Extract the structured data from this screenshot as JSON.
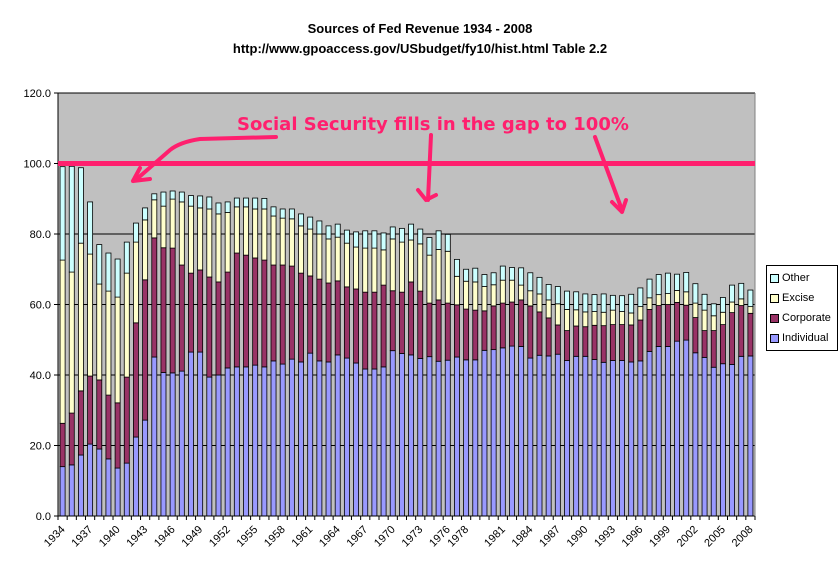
{
  "chart_data": {
    "type": "bar",
    "stacked": true,
    "title": "Sources of Fed Revenue 1934 - 2008",
    "subtitle": "http://www.gpoaccess.gov/USbudget/fy10/hist.html Table 2.2",
    "xlabel": "",
    "ylabel": "",
    "ylim": [
      0,
      120
    ],
    "yticks": [
      "0.0",
      "20.0",
      "40.0",
      "60.0",
      "80.0",
      "100.0",
      "120.0"
    ],
    "ytick_values": [
      0,
      20,
      40,
      60,
      80,
      100,
      120
    ],
    "grid": true,
    "legend_position": "right",
    "xtick_labels": [
      "1934",
      "1937",
      "1940",
      "1943",
      "1946",
      "1949",
      "1952",
      "1955",
      "1958",
      "1961",
      "1964",
      "1967",
      "1970",
      "1973",
      "1976",
      "1978",
      "1981",
      "1984",
      "1987",
      "1990",
      "1993",
      "1996",
      "1999",
      "2002",
      "2005",
      "2008"
    ],
    "categories": [
      "1934",
      "1935",
      "1936",
      "1937",
      "1938",
      "1939",
      "1940",
      "1941",
      "1942",
      "1943",
      "1944",
      "1945",
      "1946",
      "1947",
      "1948",
      "1949",
      "1950",
      "1951",
      "1952",
      "1953",
      "1954",
      "1955",
      "1956",
      "1957",
      "1958",
      "1959",
      "1960",
      "1961",
      "1962",
      "1963",
      "1964",
      "1965",
      "1966",
      "1967",
      "1968",
      "1969",
      "1970",
      "1971",
      "1972",
      "1973",
      "1974",
      "1975",
      "1976",
      "TQ",
      "1977",
      "1978",
      "1979",
      "1980",
      "1981",
      "1982",
      "1983",
      "1984",
      "1985",
      "1986",
      "1987",
      "1988",
      "1989",
      "1990",
      "1991",
      "1992",
      "1993",
      "1994",
      "1995",
      "1996",
      "1997",
      "1998",
      "1999",
      "2000",
      "2001",
      "2002",
      "2003",
      "2004",
      "2005",
      "2006",
      "2007",
      "2008"
    ],
    "series": [
      {
        "name": "Individual",
        "color": "#9999ff",
        "values": [
          14.0,
          14.5,
          17.3,
          20.4,
          19.0,
          16.2,
          13.6,
          15.0,
          22.4,
          27.2,
          45.1,
          40.7,
          40.6,
          41.1,
          46.5,
          46.5,
          39.4,
          40.0,
          42.0,
          42.3,
          42.3,
          42.8,
          42.3,
          44.0,
          43.1,
          44.5,
          43.7,
          46.2,
          44.0,
          43.7,
          45.7,
          44.8,
          43.4,
          41.7,
          41.7,
          42.3,
          46.9,
          46.1,
          45.7,
          44.7,
          45.2,
          43.9,
          44.2,
          45.1,
          44.3,
          44.3,
          47.0,
          47.2,
          47.7,
          48.2,
          48.1,
          44.8,
          45.6,
          45.4,
          45.9,
          44.1,
          45.3,
          45.3,
          44.4,
          43.6,
          44.1,
          44.1,
          43.7,
          44.0,
          46.7,
          48.1,
          48.1,
          49.6,
          49.9,
          46.3,
          45.0,
          42.2,
          43.2,
          43.0,
          45.3,
          45.4
        ]
      },
      {
        "name": "Corporate",
        "color": "#993366",
        "values": [
          12.3,
          14.7,
          18.2,
          19.3,
          19.6,
          18.1,
          18.5,
          24.4,
          32.4,
          39.8,
          33.8,
          35.4,
          35.4,
          30.1,
          22.4,
          23.3,
          28.4,
          26.4,
          27.2,
          32.3,
          31.7,
          30.4,
          30.3,
          27.2,
          28.1,
          26.4,
          25.2,
          21.9,
          23.2,
          22.4,
          21.0,
          20.2,
          21.0,
          21.8,
          21.8,
          23.2,
          17.0,
          17.4,
          20.7,
          19.1,
          15.2,
          17.4,
          16.2,
          14.8,
          14.4,
          14.1,
          11.2,
          12.4,
          12.7,
          12.5,
          13.2,
          14.8,
          12.3,
          10.8,
          8.3,
          8.5,
          8.6,
          8.4,
          9.7,
          10.4,
          10.2,
          10.2,
          10.5,
          11.6,
          11.9,
          11.6,
          11.9,
          11.0,
          9.9,
          10.0,
          7.6,
          10.4,
          11.1,
          14.7,
          14.4,
          12.1
        ]
      },
      {
        "name": "Excise",
        "color": "#ffffcc",
        "values": [
          46.3,
          40.0,
          41.9,
          34.6,
          27.2,
          29.5,
          30.0,
          29.5,
          22.9,
          17.0,
          10.8,
          11.8,
          13.9,
          17.9,
          19.0,
          17.6,
          19.3,
          19.3,
          16.9,
          13.1,
          13.7,
          13.9,
          14.5,
          13.9,
          13.3,
          13.4,
          13.4,
          13.3,
          12.8,
          12.5,
          12.4,
          12.4,
          11.9,
          12.5,
          12.5,
          10.0,
          14.7,
          14.2,
          11.9,
          13.4,
          13.6,
          14.3,
          14.7,
          8.1,
          7.9,
          8.0,
          6.9,
          6.0,
          6.5,
          6.2,
          4.2,
          4.3,
          5.1,
          5.1,
          6.0,
          6.0,
          4.6,
          4.2,
          3.9,
          3.8,
          4.1,
          3.7,
          3.4,
          3.8,
          3.3,
          3.1,
          3.1,
          3.4,
          3.8,
          4.1,
          5.8,
          4.2,
          3.5,
          3.0,
          1.9,
          1.9
        ]
      },
      {
        "name": "Other",
        "color": "#ccffff",
        "values": [
          26.5,
          30.0,
          21.4,
          14.8,
          11.2,
          10.8,
          10.8,
          8.8,
          5.4,
          3.4,
          1.7,
          4.0,
          2.3,
          2.8,
          3.0,
          3.4,
          3.4,
          3.1,
          3.0,
          2.5,
          2.5,
          3.1,
          3.0,
          2.6,
          2.6,
          2.8,
          3.4,
          3.4,
          3.7,
          3.7,
          3.7,
          3.7,
          4.3,
          4.9,
          4.9,
          4.8,
          3.4,
          3.9,
          4.5,
          4.2,
          5.0,
          5.3,
          4.8,
          4.8,
          3.4,
          3.9,
          3.4,
          3.4,
          4.0,
          3.6,
          4.9,
          5.1,
          4.7,
          4.4,
          4.9,
          5.2,
          5.1,
          5.1,
          4.8,
          5.2,
          4.2,
          4.5,
          5.3,
          5.3,
          5.3,
          5.7,
          5.8,
          4.6,
          5.5,
          5.5,
          4.5,
          3.4,
          4.2,
          4.8,
          4.4,
          4.7
        ]
      }
    ],
    "reference_line": {
      "value": 100,
      "color": "#ff1f6e"
    },
    "annotation": "Social Security fills in the gap to 100%"
  }
}
